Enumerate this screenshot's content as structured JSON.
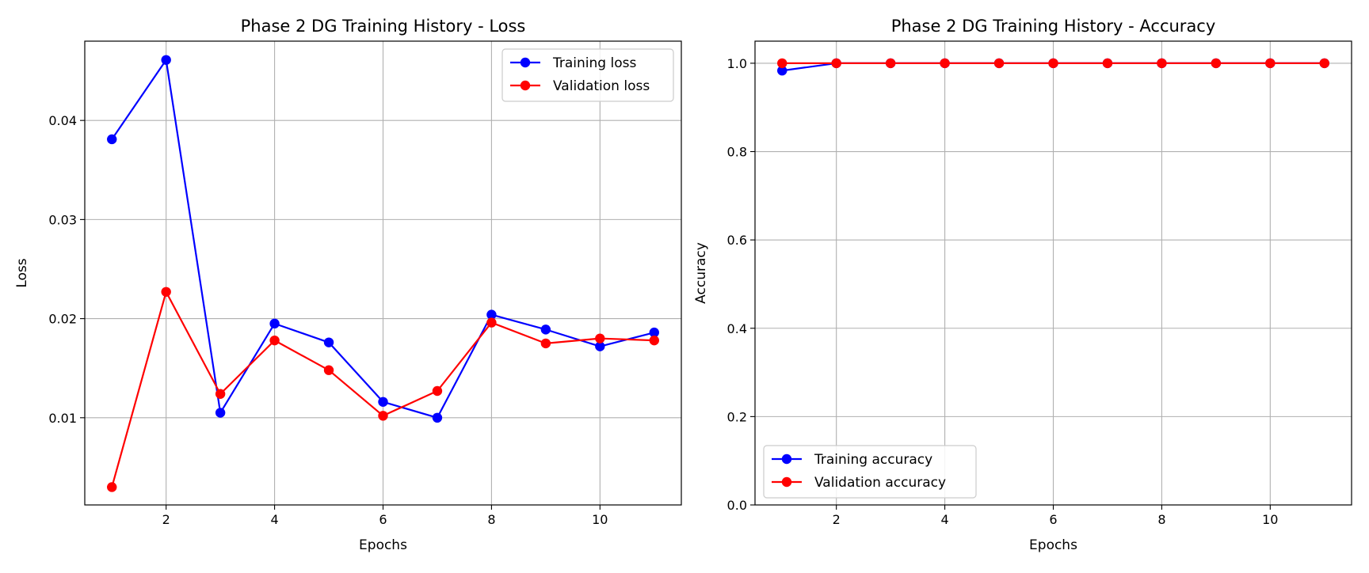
{
  "chart_data": [
    {
      "type": "line",
      "title": "Phase 2 DG Training History - Loss",
      "xlabel": "Epochs",
      "ylabel": "Loss",
      "x": [
        1,
        2,
        3,
        4,
        5,
        6,
        7,
        8,
        9,
        10,
        11
      ],
      "xlim": [
        0.5,
        11.5
      ],
      "ylim": [
        0.0012,
        0.048
      ],
      "xticks": [
        2,
        4,
        6,
        8,
        10
      ],
      "xtick_labels": [
        "2",
        "4",
        "6",
        "8",
        "10"
      ],
      "yticks": [
        0.01,
        0.02,
        0.03,
        0.04
      ],
      "ytick_labels": [
        "0.01",
        "0.02",
        "0.03",
        "0.04"
      ],
      "grid": true,
      "legend_position": "top-right",
      "series": [
        {
          "name": "Training loss",
          "color": "#0000ff",
          "values": [
            0.0381,
            0.0461,
            0.0105,
            0.0195,
            0.0176,
            0.0116,
            0.01,
            0.0204,
            0.0189,
            0.0172,
            0.0186
          ]
        },
        {
          "name": "Validation loss",
          "color": "#ff0000",
          "values": [
            0.003,
            0.0227,
            0.0124,
            0.0178,
            0.0148,
            0.0102,
            0.0127,
            0.0196,
            0.0175,
            0.018,
            0.0178
          ]
        }
      ]
    },
    {
      "type": "line",
      "title": "Phase 2 DG Training History - Accuracy",
      "xlabel": "Epochs",
      "ylabel": "Accuracy",
      "x": [
        1,
        2,
        3,
        4,
        5,
        6,
        7,
        8,
        9,
        10,
        11
      ],
      "xlim": [
        0.5,
        11.5
      ],
      "ylim": [
        0.0,
        1.05
      ],
      "xticks": [
        2,
        4,
        6,
        8,
        10
      ],
      "xtick_labels": [
        "2",
        "4",
        "6",
        "8",
        "10"
      ],
      "yticks": [
        0.0,
        0.2,
        0.4,
        0.6,
        0.8,
        1.0
      ],
      "ytick_labels": [
        "0.0",
        "0.2",
        "0.4",
        "0.6",
        "0.8",
        "1.0"
      ],
      "grid": true,
      "legend_position": "bottom-left",
      "series": [
        {
          "name": "Training accuracy",
          "color": "#0000ff",
          "values": [
            0.9833,
            1.0,
            1.0,
            1.0,
            1.0,
            1.0,
            1.0,
            1.0,
            1.0,
            1.0,
            1.0
          ]
        },
        {
          "name": "Validation accuracy",
          "color": "#ff0000",
          "values": [
            1.0,
            1.0,
            1.0,
            1.0,
            1.0,
            1.0,
            1.0,
            1.0,
            1.0,
            1.0,
            1.0
          ]
        }
      ]
    }
  ]
}
